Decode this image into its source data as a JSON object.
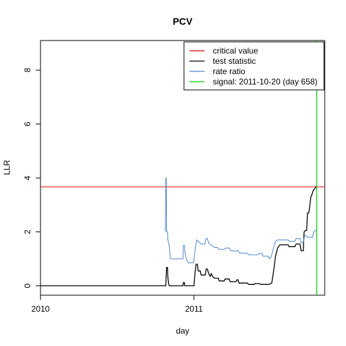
{
  "chart_data": {
    "type": "line",
    "title": "PCV",
    "xlabel": "day",
    "ylabel": "LLR",
    "x_start": "2010-01-01",
    "xlim": [
      "2010-01-01",
      "2011-11-08"
    ],
    "ylim": [
      -0.35,
      9.1
    ],
    "x_ticks": [
      {
        "date": "2010-01-01",
        "label": "2010"
      },
      {
        "date": "2011-01-01",
        "label": "2011"
      }
    ],
    "y_ticks": [
      0,
      2,
      4,
      6,
      8
    ],
    "critical_value": 3.67,
    "signal": {
      "date": "2011-10-20",
      "label": "signal: 2011-10-20 (day 658)"
    },
    "legend": {
      "position": "top-right",
      "entries": [
        {
          "label": "critical value",
          "color": "#dd0000"
        },
        {
          "label": "test statistic",
          "color": "#000000"
        },
        {
          "label": "rate ratio",
          "color": "#4f86c6"
        },
        {
          "label": "signal: 2011-10-20 (day 658)",
          "color": "#00cc00"
        }
      ]
    },
    "series": [
      {
        "name": "test statistic",
        "color": "#000000",
        "points": [
          [
            "2010-01-01",
            0.0
          ],
          [
            "2010-10-26",
            0.0
          ],
          [
            "2010-10-27",
            0.4
          ],
          [
            "2010-10-28",
            0.68
          ],
          [
            "2010-10-30",
            0.68
          ],
          [
            "2010-10-31",
            0.3
          ],
          [
            "2010-11-02",
            0.05
          ],
          [
            "2010-11-04",
            0.0
          ],
          [
            "2010-12-06",
            0.0
          ],
          [
            "2010-12-07",
            0.12
          ],
          [
            "2010-12-09",
            0.12
          ],
          [
            "2010-12-10",
            0.0
          ],
          [
            "2011-01-01",
            0.0
          ],
          [
            "2011-01-02",
            0.2
          ],
          [
            "2011-01-04",
            0.55
          ],
          [
            "2011-01-06",
            0.8
          ],
          [
            "2011-01-09",
            0.8
          ],
          [
            "2011-01-11",
            0.55
          ],
          [
            "2011-01-16",
            0.55
          ],
          [
            "2011-01-18",
            0.4
          ],
          [
            "2011-01-28",
            0.4
          ],
          [
            "2011-01-30",
            0.62
          ],
          [
            "2011-02-02",
            0.62
          ],
          [
            "2011-02-05",
            0.45
          ],
          [
            "2011-02-09",
            0.35
          ],
          [
            "2011-02-11",
            0.45
          ],
          [
            "2011-02-16",
            0.3
          ],
          [
            "2011-02-21",
            0.28
          ],
          [
            "2011-02-28",
            0.28
          ],
          [
            "2011-03-02",
            0.18
          ],
          [
            "2011-03-14",
            0.18
          ],
          [
            "2011-03-16",
            0.25
          ],
          [
            "2011-03-26",
            0.25
          ],
          [
            "2011-03-28",
            0.15
          ],
          [
            "2011-04-11",
            0.15
          ],
          [
            "2011-04-13",
            0.22
          ],
          [
            "2011-04-16",
            0.22
          ],
          [
            "2011-04-18",
            0.1
          ],
          [
            "2011-05-08",
            0.1
          ],
          [
            "2011-05-11",
            0.05
          ],
          [
            "2011-05-24",
            0.05
          ],
          [
            "2011-05-26",
            0.08
          ],
          [
            "2011-06-06",
            0.08
          ],
          [
            "2011-06-09",
            0.05
          ],
          [
            "2011-06-28",
            0.05
          ],
          [
            "2011-07-05",
            0.1
          ],
          [
            "2011-07-10",
            0.6
          ],
          [
            "2011-07-14",
            1.1
          ],
          [
            "2011-07-19",
            1.4
          ],
          [
            "2011-07-24",
            1.52
          ],
          [
            "2011-08-13",
            1.52
          ],
          [
            "2011-08-15",
            1.45
          ],
          [
            "2011-08-29",
            1.45
          ],
          [
            "2011-09-01",
            1.55
          ],
          [
            "2011-09-10",
            1.55
          ],
          [
            "2011-09-13",
            1.3
          ],
          [
            "2011-09-18",
            1.3
          ],
          [
            "2011-09-20",
            2.0
          ],
          [
            "2011-09-23",
            2.05
          ],
          [
            "2011-09-26",
            2.05
          ],
          [
            "2011-09-28",
            2.7
          ],
          [
            "2011-10-01",
            2.7
          ],
          [
            "2011-10-03",
            2.9
          ],
          [
            "2011-10-06",
            3.3
          ],
          [
            "2011-10-09",
            3.4
          ],
          [
            "2011-10-12",
            3.55
          ],
          [
            "2011-10-15",
            3.6
          ],
          [
            "2011-10-18",
            3.65
          ],
          [
            "2011-10-20",
            3.68
          ]
        ]
      },
      {
        "name": "rate ratio",
        "color": "#4f86c6",
        "points": [
          [
            "2010-10-25",
            2.0
          ],
          [
            "2010-10-26",
            4.0
          ],
          [
            "2010-10-27",
            4.0
          ],
          [
            "2010-10-28",
            2.0
          ],
          [
            "2010-10-30",
            2.0
          ],
          [
            "2010-10-31",
            1.7
          ],
          [
            "2010-11-03",
            1.5
          ],
          [
            "2010-11-06",
            1.0
          ],
          [
            "2010-12-06",
            1.0
          ],
          [
            "2010-12-07",
            1.5
          ],
          [
            "2010-12-09",
            1.5
          ],
          [
            "2010-12-11",
            1.2
          ],
          [
            "2010-12-14",
            1.0
          ],
          [
            "2010-12-18",
            0.85
          ],
          [
            "2010-12-31",
            0.85
          ],
          [
            "2011-01-02",
            1.1
          ],
          [
            "2011-01-05",
            1.5
          ],
          [
            "2011-01-08",
            1.7
          ],
          [
            "2011-01-11",
            1.65
          ],
          [
            "2011-01-18",
            1.55
          ],
          [
            "2011-01-27",
            1.55
          ],
          [
            "2011-01-30",
            1.75
          ],
          [
            "2011-02-02",
            1.75
          ],
          [
            "2011-02-05",
            1.58
          ],
          [
            "2011-02-12",
            1.5
          ],
          [
            "2011-02-19",
            1.42
          ],
          [
            "2011-02-26",
            1.42
          ],
          [
            "2011-03-01",
            1.35
          ],
          [
            "2011-03-14",
            1.35
          ],
          [
            "2011-03-17",
            1.4
          ],
          [
            "2011-03-26",
            1.4
          ],
          [
            "2011-03-29",
            1.3
          ],
          [
            "2011-04-11",
            1.28
          ],
          [
            "2011-04-15",
            1.32
          ],
          [
            "2011-04-19",
            1.22
          ],
          [
            "2011-05-08",
            1.2
          ],
          [
            "2011-05-11",
            1.15
          ],
          [
            "2011-06-02",
            1.15
          ],
          [
            "2011-06-05",
            1.2
          ],
          [
            "2011-06-12",
            1.2
          ],
          [
            "2011-06-14",
            1.1
          ],
          [
            "2011-06-27",
            1.1
          ],
          [
            "2011-06-29",
            1.0
          ],
          [
            "2011-07-03",
            1.05
          ],
          [
            "2011-07-06",
            1.2
          ],
          [
            "2011-07-10",
            1.45
          ],
          [
            "2011-07-14",
            1.65
          ],
          [
            "2011-07-19",
            1.7
          ],
          [
            "2011-08-13",
            1.7
          ],
          [
            "2011-08-16",
            1.65
          ],
          [
            "2011-08-29",
            1.65
          ],
          [
            "2011-09-01",
            1.75
          ],
          [
            "2011-09-10",
            1.75
          ],
          [
            "2011-09-13",
            1.6
          ],
          [
            "2011-09-18",
            1.6
          ],
          [
            "2011-09-21",
            1.85
          ],
          [
            "2011-09-26",
            1.85
          ],
          [
            "2011-09-29",
            1.8
          ],
          [
            "2011-10-10",
            1.8
          ],
          [
            "2011-10-13",
            2.0
          ],
          [
            "2011-10-16",
            2.05
          ],
          [
            "2011-10-20",
            2.05
          ]
        ]
      }
    ]
  }
}
